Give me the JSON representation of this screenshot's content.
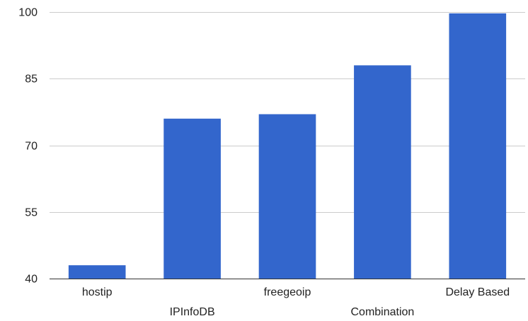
{
  "chart_data": {
    "type": "bar",
    "title": "",
    "xlabel": "",
    "ylabel": "",
    "categories": [
      "hostip",
      "IPInfoDB",
      "freegeoip",
      "Combination",
      "Delay Based"
    ],
    "values": [
      43,
      76,
      77,
      88,
      99.7
    ],
    "ylim": [
      40,
      100
    ],
    "yticks": [
      40,
      55,
      70,
      85,
      100
    ],
    "grid": true,
    "legend": "none",
    "bar_color": "#3366cc",
    "grid_color": "#cccccc",
    "axis_color": "#333333",
    "text_color": "#222222"
  }
}
